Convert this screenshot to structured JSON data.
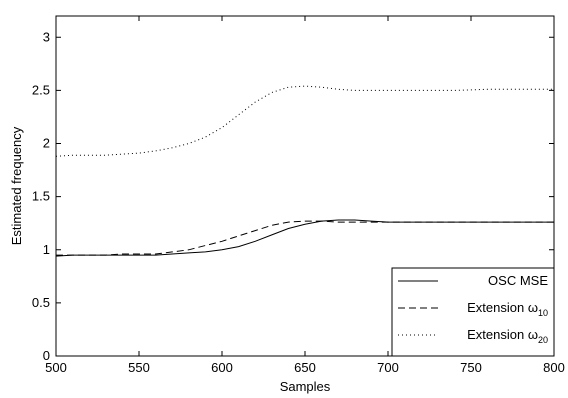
{
  "chart_data": {
    "type": "line",
    "title": "",
    "xlabel": "Samples",
    "ylabel": "Estimated frequency",
    "xlim": [
      500,
      800
    ],
    "ylim": [
      0,
      3.2
    ],
    "xticks": [
      500,
      550,
      600,
      650,
      700,
      750,
      800
    ],
    "yticks": [
      0,
      0.5,
      1,
      1.5,
      2,
      2.5,
      3
    ],
    "grid": false,
    "legend_position": "bottom-right",
    "series": [
      {
        "name": "OSC MSE",
        "style": "solid",
        "color": "#000000",
        "x": [
          500,
          510,
          520,
          530,
          540,
          550,
          560,
          570,
          580,
          590,
          600,
          610,
          620,
          630,
          640,
          650,
          660,
          670,
          680,
          690,
          700,
          720,
          740,
          760,
          780,
          800
        ],
        "y": [
          0.94,
          0.95,
          0.95,
          0.95,
          0.95,
          0.95,
          0.95,
          0.96,
          0.97,
          0.98,
          1.0,
          1.03,
          1.08,
          1.14,
          1.2,
          1.24,
          1.27,
          1.28,
          1.28,
          1.27,
          1.26,
          1.26,
          1.26,
          1.26,
          1.26,
          1.26
        ]
      },
      {
        "name": "Extension",
        "subscript": "10",
        "style": "dashed",
        "color": "#000000",
        "x": [
          500,
          510,
          520,
          530,
          540,
          550,
          560,
          570,
          580,
          590,
          600,
          610,
          620,
          630,
          640,
          650,
          660,
          670,
          680,
          690,
          700,
          720,
          740,
          760,
          780,
          800
        ],
        "y": [
          0.95,
          0.95,
          0.95,
          0.95,
          0.96,
          0.96,
          0.96,
          0.98,
          1.0,
          1.04,
          1.08,
          1.13,
          1.18,
          1.23,
          1.26,
          1.27,
          1.27,
          1.26,
          1.26,
          1.26,
          1.26,
          1.26,
          1.26,
          1.26,
          1.26,
          1.26
        ]
      },
      {
        "name": "Extension",
        "subscript": "20",
        "style": "dotted",
        "color": "#000000",
        "x": [
          500,
          510,
          520,
          530,
          540,
          550,
          560,
          570,
          580,
          590,
          600,
          610,
          620,
          630,
          640,
          650,
          660,
          670,
          680,
          690,
          700,
          720,
          740,
          760,
          780,
          800
        ],
        "y": [
          1.88,
          1.89,
          1.89,
          1.89,
          1.9,
          1.91,
          1.93,
          1.96,
          2.0,
          2.06,
          2.15,
          2.27,
          2.39,
          2.48,
          2.53,
          2.54,
          2.53,
          2.51,
          2.5,
          2.5,
          2.5,
          2.5,
          2.5,
          2.51,
          2.51,
          2.51
        ]
      }
    ],
    "legend_symbol": "ω"
  }
}
